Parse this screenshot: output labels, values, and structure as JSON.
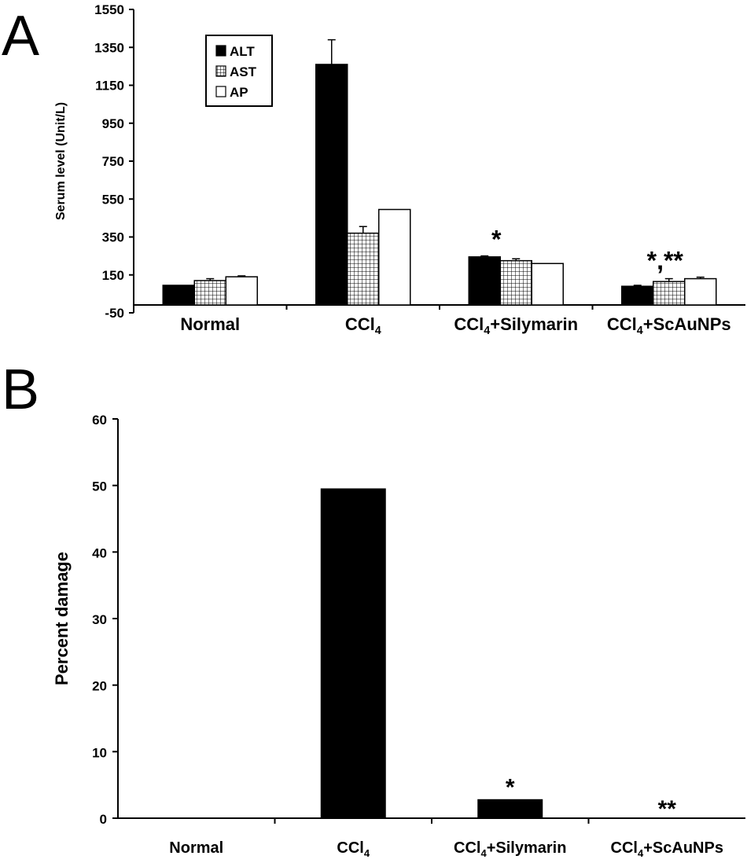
{
  "chart_data": [
    {
      "panel": "A",
      "type": "bar",
      "categories": [
        "Normal",
        "CCl4",
        "CCl4+Silymarin",
        "CCl4+ScAuNPs"
      ],
      "series": [
        {
          "name": "ALT",
          "values": [
            95,
            1260,
            245,
            90
          ],
          "errors": [
            0,
            130,
            5,
            5
          ],
          "pattern": "solid"
        },
        {
          "name": "AST",
          "values": [
            120,
            370,
            225,
            115
          ],
          "errors": [
            10,
            35,
            10,
            15
          ],
          "pattern": "grid"
        },
        {
          "name": "AP",
          "values": [
            140,
            495,
            210,
            130
          ],
          "errors": [
            5,
            0,
            0,
            8
          ],
          "pattern": "open"
        }
      ],
      "ylabel": "Serum level (Unit/L)",
      "ylim": [
        -50,
        1550
      ],
      "yticks": [
        -50,
        150,
        350,
        550,
        750,
        950,
        1150,
        1350,
        1550
      ],
      "annotations": [
        {
          "category": "CCl4+Silymarin",
          "text": "*"
        },
        {
          "category": "CCl4+ScAuNPs",
          "text": "*,**"
        }
      ],
      "legend": "top-left",
      "grid": false
    },
    {
      "panel": "B",
      "type": "bar",
      "categories": [
        "Normal",
        "CCl4",
        "CCl4+Silymarin",
        "CCl4+ScAuNPs"
      ],
      "values": [
        0,
        49.5,
        2.8,
        0
      ],
      "ylabel": "Percent damage",
      "ylim": [
        0,
        60
      ],
      "yticks": [
        0,
        10,
        20,
        30,
        40,
        50,
        60
      ],
      "annotations": [
        {
          "category": "CCl4+Silymarin",
          "text": "*"
        },
        {
          "category": "CCl4+ScAuNPs",
          "text": "**"
        }
      ],
      "grid": false
    }
  ],
  "panel_labels": [
    "A",
    "B"
  ]
}
